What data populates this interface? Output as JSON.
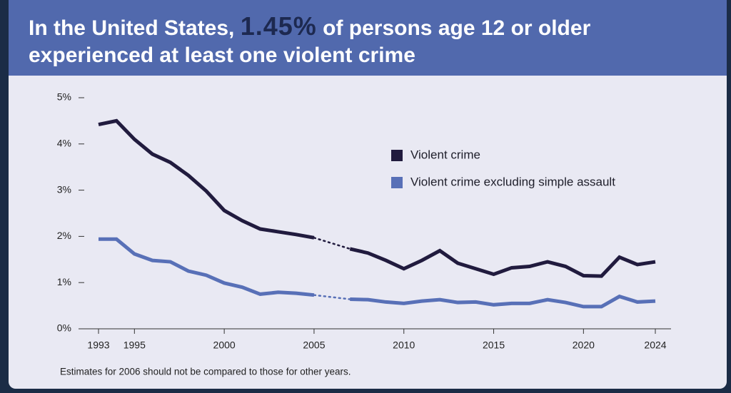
{
  "header": {
    "before": "In the United States,",
    "highlight": "1.45%",
    "after": "of persons age 12 or older",
    "line2": "experienced at least one violent crime"
  },
  "chart_data": {
    "type": "line",
    "x": [
      1993,
      1994,
      1995,
      1996,
      1997,
      1998,
      1999,
      2000,
      2001,
      2002,
      2003,
      2004,
      2005,
      2006,
      2007,
      2008,
      2009,
      2010,
      2011,
      2012,
      2013,
      2014,
      2015,
      2016,
      2017,
      2018,
      2019,
      2020,
      2021,
      2022,
      2023,
      2024
    ],
    "series": [
      {
        "name": "Violent crime",
        "color": "#211b3e",
        "values": [
          4.42,
          4.5,
          4.1,
          3.78,
          3.6,
          3.32,
          2.98,
          2.56,
          2.34,
          2.16,
          2.1,
          2.04,
          1.97,
          null,
          1.73,
          1.64,
          1.48,
          1.3,
          1.48,
          1.69,
          1.42,
          1.3,
          1.18,
          1.32,
          1.35,
          1.45,
          1.35,
          1.15,
          1.14,
          1.55,
          1.39,
          1.45
        ]
      },
      {
        "name": "Violent crime excluding simple assault",
        "color": "#5870b7",
        "values": [
          1.94,
          1.94,
          1.62,
          1.48,
          1.45,
          1.25,
          1.16,
          0.99,
          0.9,
          0.75,
          0.79,
          0.77,
          0.73,
          null,
          0.64,
          0.63,
          0.58,
          0.55,
          0.6,
          0.63,
          0.57,
          0.58,
          0.52,
          0.55,
          0.55,
          0.63,
          0.57,
          0.48,
          0.48,
          0.7,
          0.58,
          0.6
        ]
      }
    ],
    "xlim": [
      1993,
      2024
    ],
    "xticks": [
      1993,
      1995,
      2000,
      2005,
      2010,
      2015,
      2020,
      2024
    ],
    "ylim": [
      0,
      5
    ],
    "yticks": [
      {
        "value": 0,
        "label": "0%"
      },
      {
        "value": 1,
        "label": "1%"
      },
      {
        "value": 2,
        "label": "2%"
      },
      {
        "value": 3,
        "label": "3%"
      },
      {
        "value": 4,
        "label": "4%"
      },
      {
        "value": 5,
        "label": "5%"
      }
    ],
    "grid": false,
    "footnote": "Estimates for 2006 should not be compared to those for other years."
  }
}
